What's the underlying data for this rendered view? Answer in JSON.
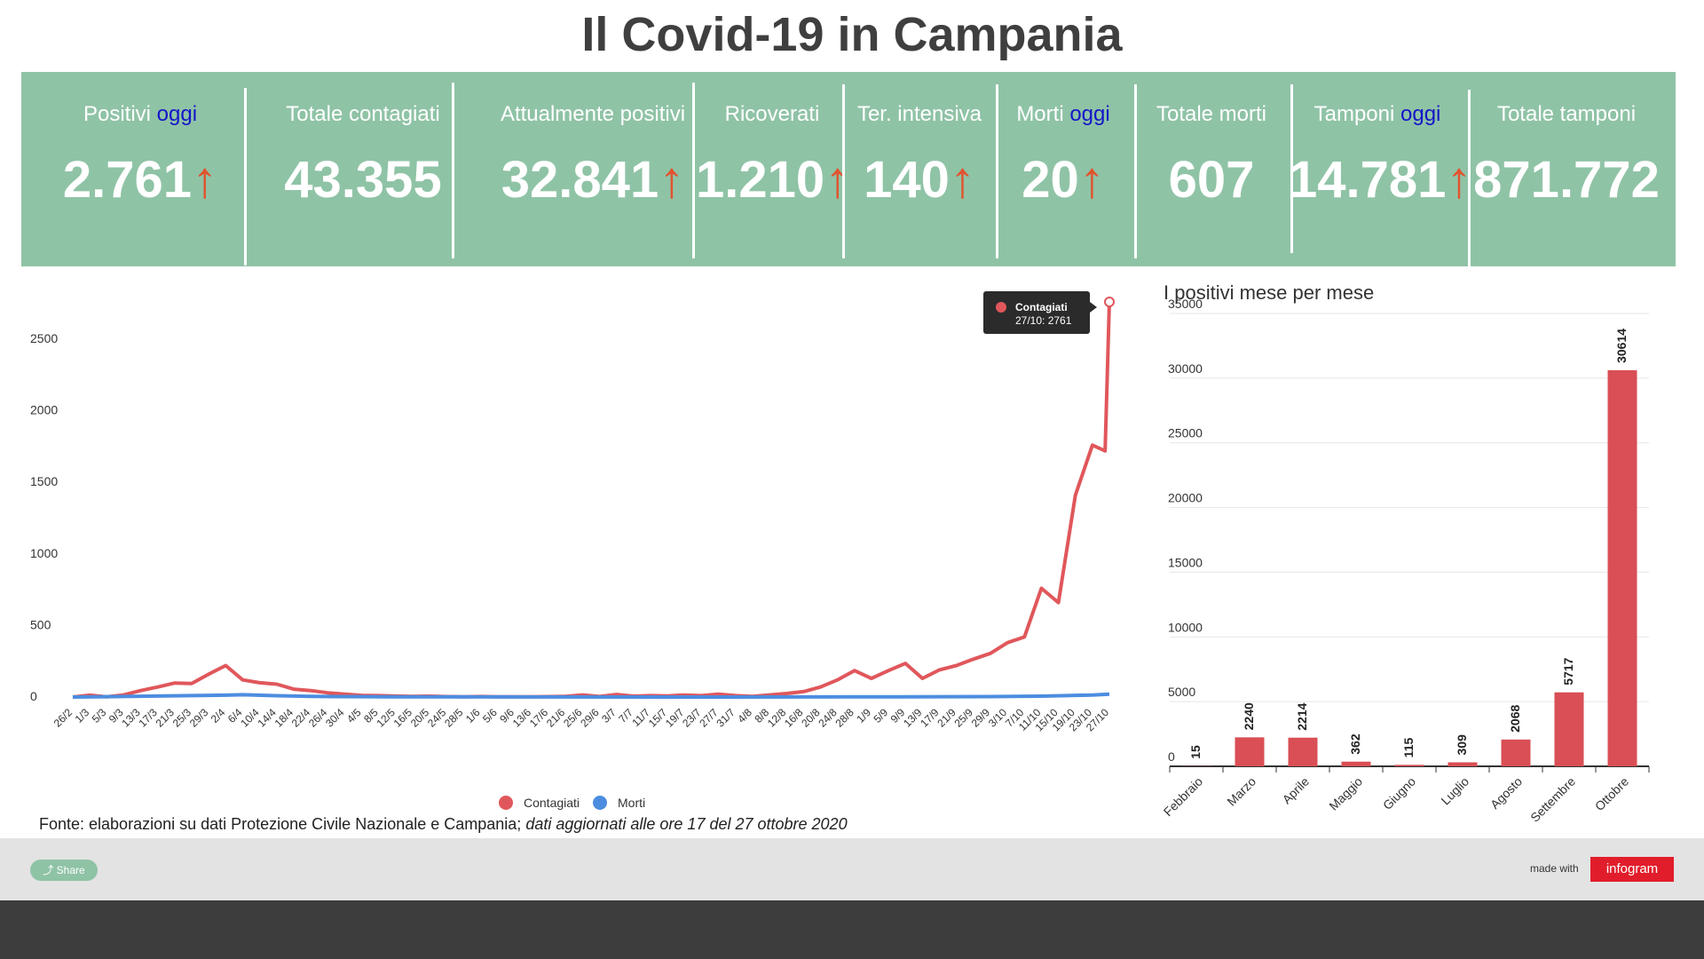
{
  "title": "Il Covid-19 in Campania",
  "stats": [
    {
      "label": "Positivi ",
      "label_hi": "oggi",
      "value": "2.761",
      "arrow": "↑"
    },
    {
      "label": "Totale contagiati",
      "label_hi": "",
      "value": "43.355",
      "arrow": ""
    },
    {
      "label": "Attualmente positivi",
      "label_hi": "",
      "value": "32.841",
      "arrow": "↑"
    },
    {
      "label": "Ricoverati",
      "label_hi": "",
      "value": "1.210",
      "arrow": "↑"
    },
    {
      "label": "Ter. intensiva",
      "label_hi": "",
      "value": "140",
      "arrow": "↑"
    },
    {
      "label": "Morti ",
      "label_hi": "oggi",
      "value": "20",
      "arrow": "↑"
    },
    {
      "label": "Totale morti",
      "label_hi": "",
      "value": "607",
      "arrow": ""
    },
    {
      "label": "Tamponi ",
      "label_hi": "oggi",
      "value": "14.781",
      "arrow": "↑"
    },
    {
      "label": "Totale tamponi",
      "label_hi": "",
      "value": "871.772",
      "arrow": ""
    }
  ],
  "colors": {
    "banner": "#8fc3a6",
    "contagiati": "#e0575b",
    "morti": "#4c8de0",
    "bars": "#d94f55",
    "highlight": "#1515c8",
    "arrow": "#e2532e"
  },
  "chart_data": [
    {
      "type": "line",
      "title": "",
      "ylim": [
        0,
        2761
      ],
      "yticks": [
        0,
        500,
        1000,
        1500,
        2000,
        2500
      ],
      "x_tick_labels": [
        "26/2",
        "1/3",
        "5/3",
        "9/3",
        "13/3",
        "17/3",
        "21/3",
        "25/3",
        "29/3",
        "2/4",
        "6/4",
        "10/4",
        "14/4",
        "18/4",
        "22/4",
        "26/4",
        "30/4",
        "4/5",
        "8/5",
        "12/5",
        "16/5",
        "20/5",
        "24/5",
        "28/5",
        "1/6",
        "5/6",
        "9/6",
        "13/6",
        "17/6",
        "21/6",
        "25/6",
        "29/6",
        "3/7",
        "7/7",
        "11/7",
        "15/7",
        "19/7",
        "23/7",
        "27/7",
        "31/7",
        "4/8",
        "8/8",
        "12/8",
        "16/8",
        "20/8",
        "24/8",
        "28/8",
        "1/9",
        "5/9",
        "9/9",
        "13/9",
        "17/9",
        "21/9",
        "25/9",
        "29/9",
        "3/10",
        "7/10",
        "11/10",
        "15/10",
        "19/10",
        "23/10",
        "27/10"
      ],
      "series": [
        {
          "name": "Contagiati",
          "points": [
            [
              "26/2",
              0
            ],
            [
              "1/3",
              13
            ],
            [
              "5/3",
              2
            ],
            [
              "9/3",
              15
            ],
            [
              "13/3",
              45
            ],
            [
              "17/3",
              70
            ],
            [
              "21/3",
              98
            ],
            [
              "25/3",
              95
            ],
            [
              "29/3",
              160
            ],
            [
              "2/4",
              220
            ],
            [
              "6/4",
              120
            ],
            [
              "10/4",
              100
            ],
            [
              "14/4",
              90
            ],
            [
              "18/4",
              55
            ],
            [
              "22/4",
              45
            ],
            [
              "26/4",
              30
            ],
            [
              "30/4",
              20
            ],
            [
              "4/5",
              12
            ],
            [
              "8/5",
              10
            ],
            [
              "12/5",
              7
            ],
            [
              "16/5",
              5
            ],
            [
              "20/5",
              6
            ],
            [
              "24/5",
              3
            ],
            [
              "28/5",
              2
            ],
            [
              "1/6",
              4
            ],
            [
              "5/6",
              2
            ],
            [
              "9/6",
              1
            ],
            [
              "13/6",
              2
            ],
            [
              "17/6",
              3
            ],
            [
              "21/6",
              5
            ],
            [
              "25/6",
              15
            ],
            [
              "29/6",
              4
            ],
            [
              "3/7",
              18
            ],
            [
              "7/7",
              6
            ],
            [
              "11/7",
              10
            ],
            [
              "15/7",
              8
            ],
            [
              "19/7",
              14
            ],
            [
              "23/7",
              10
            ],
            [
              "27/7",
              20
            ],
            [
              "31/7",
              10
            ],
            [
              "4/8",
              5
            ],
            [
              "8/8",
              15
            ],
            [
              "12/8",
              25
            ],
            [
              "16/8",
              38
            ],
            [
              "20/8",
              70
            ],
            [
              "24/8",
              120
            ],
            [
              "28/8",
              185
            ],
            [
              "1/9",
              130
            ],
            [
              "5/9",
              185
            ],
            [
              "9/9",
              235
            ],
            [
              "13/9",
              130
            ],
            [
              "17/9",
              190
            ],
            [
              "21/9",
              220
            ],
            [
              "25/9",
              265
            ],
            [
              "29/9",
              305
            ],
            [
              "3/10",
              380
            ],
            [
              "7/10",
              420
            ],
            [
              "11/10",
              760
            ],
            [
              "15/10",
              660
            ],
            [
              "19/10",
              1410
            ],
            [
              "23/10",
              1760
            ],
            [
              "26/10",
              1720
            ],
            [
              "27/10",
              2761
            ]
          ]
        },
        {
          "name": "Morti",
          "points": [
            [
              "26/2",
              0
            ],
            [
              "2/4",
              13
            ],
            [
              "6/4",
              16
            ],
            [
              "14/4",
              9
            ],
            [
              "22/4",
              5
            ],
            [
              "30/4",
              3
            ],
            [
              "12/5",
              2
            ],
            [
              "27/7",
              0
            ],
            [
              "28/8",
              1
            ],
            [
              "29/9",
              3
            ],
            [
              "11/10",
              6
            ],
            [
              "19/10",
              12
            ],
            [
              "23/10",
              14
            ],
            [
              "27/10",
              20
            ]
          ]
        }
      ],
      "tooltip": {
        "series": "Contagiati",
        "text": "27/10: 2761"
      }
    },
    {
      "type": "bar",
      "title": "I positivi mese per mese",
      "ylim": [
        0,
        35000
      ],
      "yticks": [
        0,
        5000,
        10000,
        15000,
        20000,
        25000,
        30000,
        35000
      ],
      "categories": [
        "Febbraio",
        "Marzo",
        "Aprile",
        "Maggio",
        "Giugno",
        "Luglio",
        "Agosto",
        "Settembre",
        "Ottobre"
      ],
      "values": [
        15,
        2240,
        2214,
        362,
        115,
        309,
        2068,
        5717,
        30614
      ]
    }
  ],
  "source": {
    "text": "Fonte: elaborazioni su dati Protezione Civile Nazionale e Campania; ",
    "italic": "dati aggiornati alle ore 17 del 27 ottobre 2020"
  },
  "footer": {
    "share": "Share",
    "made_with": "made with",
    "brand": "infogram"
  }
}
